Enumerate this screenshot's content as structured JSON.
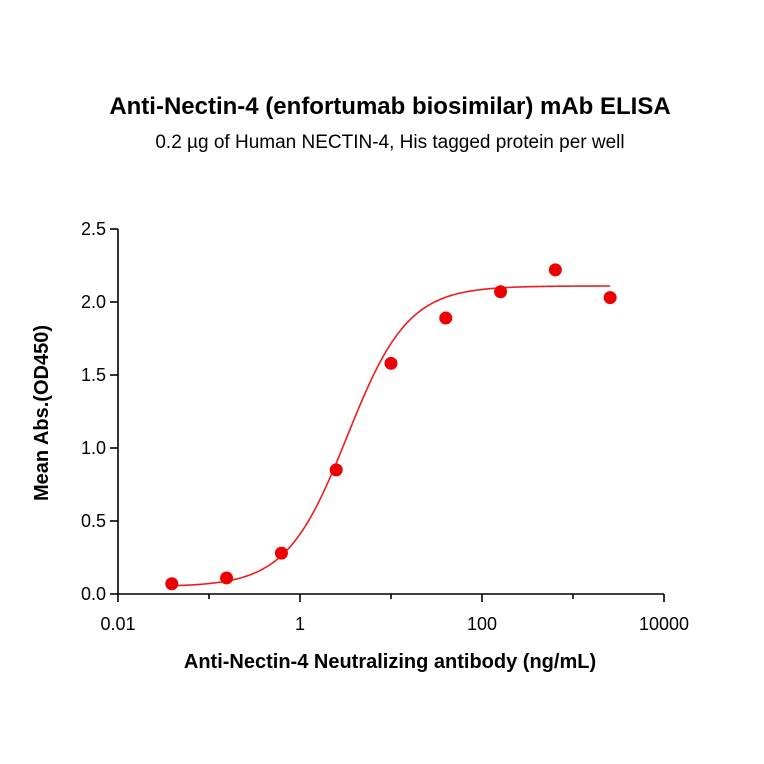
{
  "chart_data": {
    "type": "scatter",
    "title": "Anti-Nectin-4 (enfortumab biosimilar) mAb ELISA",
    "subtitle": "0.2 µg of Human NECTIN-4, His tagged protein per well",
    "xlabel": "Anti-Nectin-4 Neutralizing antibody (ng/mL)",
    "ylabel": "Mean Abs.(OD450)",
    "x_scale": "log",
    "xlim": [
      0.01,
      10000
    ],
    "ylim": [
      0,
      2.5
    ],
    "x_ticks": [
      0.01,
      1,
      100,
      10000
    ],
    "x_tick_labels": [
      "0.01",
      "1",
      "100",
      "10000"
    ],
    "y_ticks": [
      0,
      0.5,
      1,
      1.5,
      2,
      2.5
    ],
    "y_tick_labels": [
      "0.0",
      "0.5",
      "1.0",
      "1.5",
      "2.0",
      "2.5"
    ],
    "grid": false,
    "legend": "none",
    "color": "#ee0000",
    "series": [
      {
        "x": [
          0.039,
          0.156,
          0.625,
          2.5,
          10,
          40,
          160,
          640,
          2560
        ],
        "y": [
          0.07,
          0.11,
          0.28,
          0.85,
          1.58,
          1.89,
          2.07,
          2.22,
          2.03
        ]
      }
    ],
    "fit": {
      "type": "4PL",
      "bottom": 0.05,
      "top": 2.11,
      "ec50": 3.3,
      "hill": 1.3
    }
  }
}
